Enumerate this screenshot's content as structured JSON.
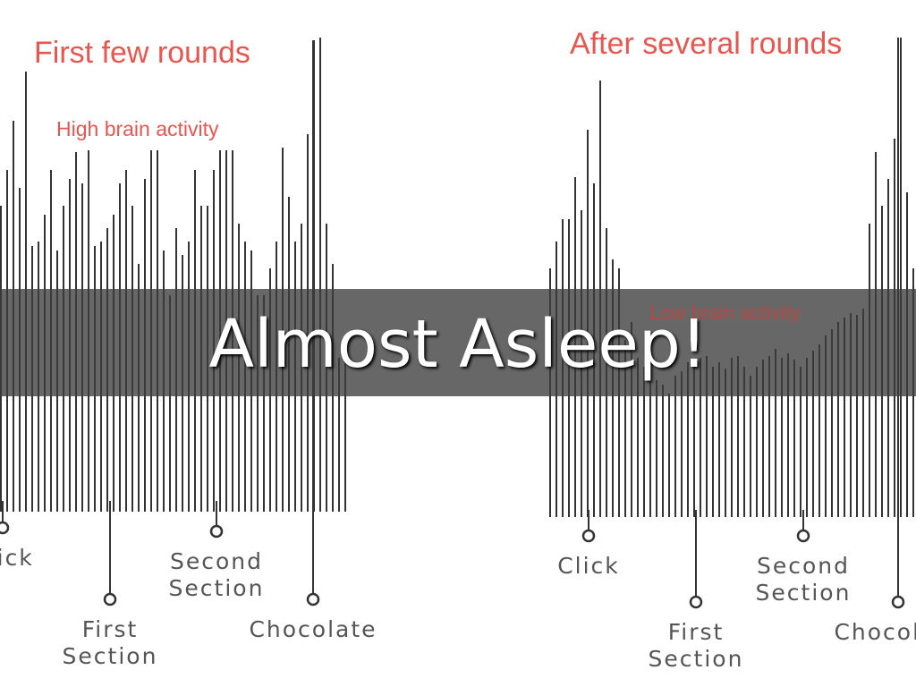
{
  "left_panel": {
    "title": "First few rounds",
    "annotation": "High brain activity",
    "labels": [
      {
        "lines": [
          "Click"
        ]
      },
      {
        "lines": [
          "First",
          "Section"
        ]
      },
      {
        "lines": [
          "Second",
          "Section"
        ]
      },
      {
        "lines": [
          "Chocolate"
        ]
      }
    ]
  },
  "right_panel": {
    "title": "After several rounds",
    "annotation": "Low brain activity",
    "labels": [
      {
        "lines": [
          "Click"
        ]
      },
      {
        "lines": [
          "First",
          "Section"
        ]
      },
      {
        "lines": [
          "Second",
          "Section"
        ]
      },
      {
        "lines": [
          "Chocolate"
        ]
      }
    ]
  },
  "banner": {
    "text": "Almost Asleep!"
  }
}
